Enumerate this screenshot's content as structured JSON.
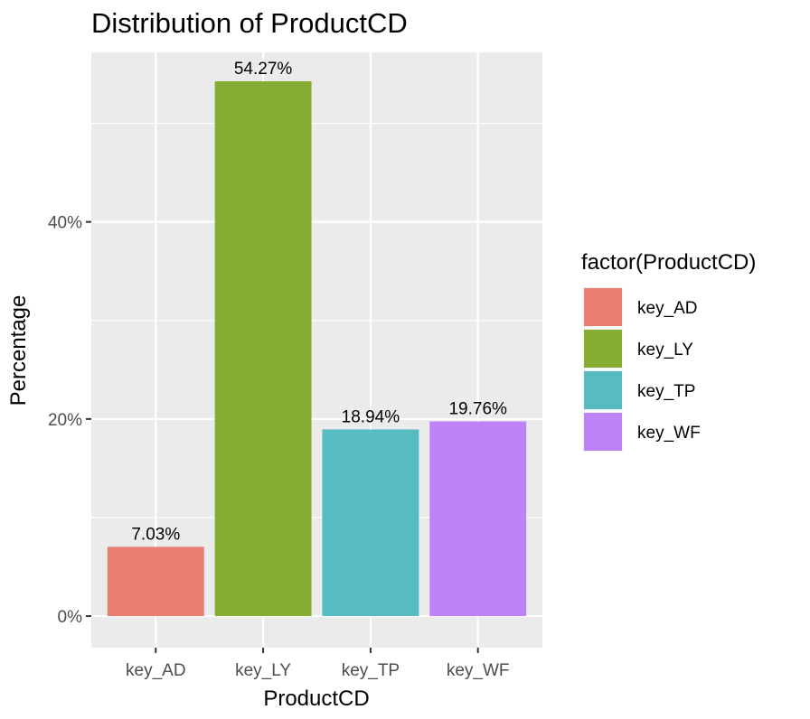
{
  "chart_data": {
    "type": "bar",
    "title": "Distribution of ProductCD",
    "xlabel": "ProductCD",
    "ylabel": "Percentage",
    "categories": [
      "key_AD",
      "key_LY",
      "key_TP",
      "key_WF"
    ],
    "values": [
      7.03,
      54.27,
      18.94,
      19.76
    ],
    "data_labels": [
      "7.03%",
      "54.27%",
      "18.94%",
      "19.76%"
    ],
    "colors": [
      "#E87F72",
      "#88AD34",
      "#56BCC2",
      "#BF83F8"
    ],
    "ylim": [
      -3.2,
      57.2
    ],
    "y_ticks": [
      0,
      20,
      40
    ],
    "y_tick_labels": [
      "0%",
      "20%",
      "40%"
    ],
    "grid": true,
    "legend": {
      "title": "factor(ProductCD)",
      "position": "right",
      "entries": [
        "key_AD",
        "key_LY",
        "key_TP",
        "key_WF"
      ]
    }
  }
}
